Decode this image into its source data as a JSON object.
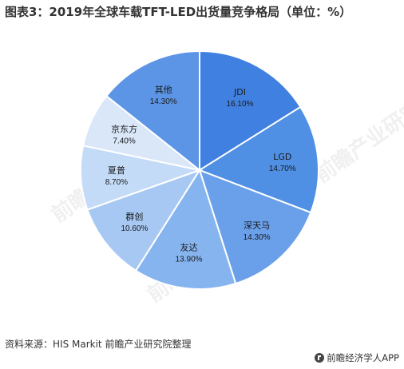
{
  "title": "图表3：2019年全球车载TFT-LED出货量竞争格局（单位：%）",
  "source": "资料来源：HIS Markit 前瞻产业研究院整理",
  "brand": "前瞻经济学人APP",
  "watermark": "前瞻产业研究院",
  "chart_data": {
    "type": "pie",
    "unit": "%",
    "categories": [
      "JDI",
      "LGD",
      "深天马",
      "友达",
      "群创",
      "夏普",
      "京东方",
      "其他"
    ],
    "values": [
      16.1,
      14.7,
      14.3,
      13.9,
      10.6,
      8.7,
      7.4,
      14.3
    ],
    "data_labels": [
      "16.10%",
      "14.70%",
      "14.30%",
      "13.90%",
      "10.60%",
      "8.70%",
      "7.40%",
      "14.30%"
    ],
    "colors": [
      "#4080e0",
      "#4f8fe4",
      "#6aa0ea",
      "#86b4ee",
      "#a6c8f3",
      "#c3dbf7",
      "#d9e7f9",
      "#5c95e6"
    ],
    "start_angle": "12 o'clock",
    "direction": "clockwise"
  }
}
